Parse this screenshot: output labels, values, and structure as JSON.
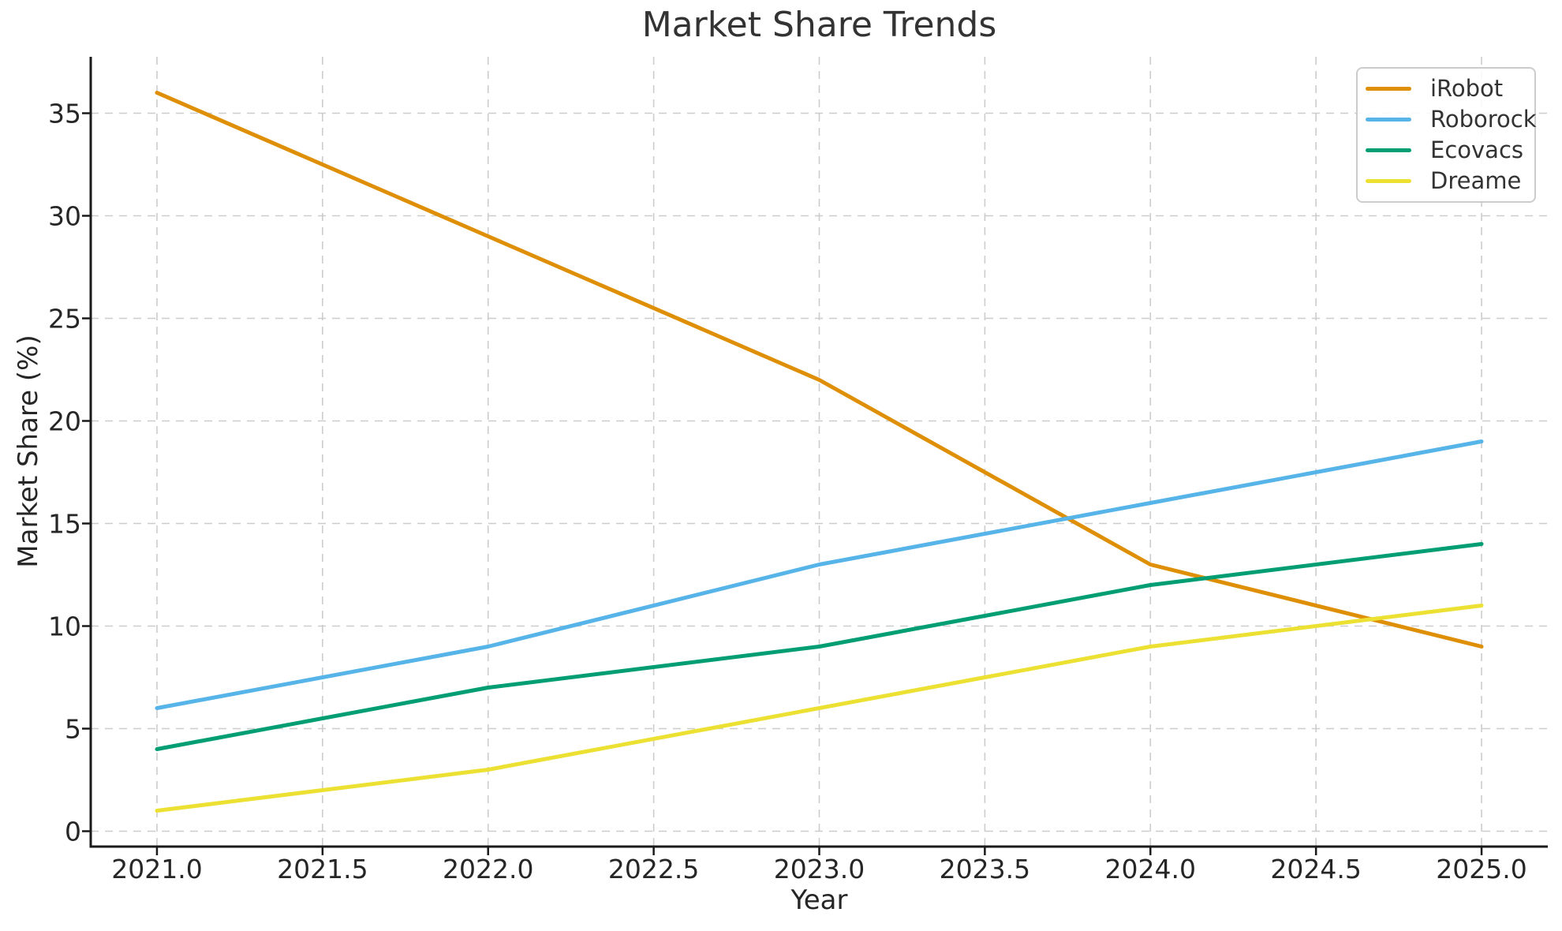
{
  "figure": {
    "kind": "matplotlib-line-chart",
    "background": "#ffffff"
  },
  "chart_data": {
    "type": "line",
    "title": "Market Share Trends",
    "xlabel": "Year",
    "ylabel": "Market Share (%)",
    "x": [
      2021,
      2022,
      2023,
      2024,
      2025
    ],
    "series": [
      {
        "name": "iRobot",
        "color": "#DE8F05",
        "values": [
          36,
          29,
          22,
          13,
          9
        ]
      },
      {
        "name": "Roborock",
        "color": "#56B4E9",
        "values": [
          6,
          9,
          13,
          16,
          19
        ]
      },
      {
        "name": "Ecovacs",
        "color": "#029E73",
        "values": [
          4,
          7,
          9,
          12,
          14
        ]
      },
      {
        "name": "Dreame",
        "color": "#ECE133",
        "values": [
          1,
          3,
          6,
          9,
          11
        ]
      }
    ],
    "xticks": {
      "values": [
        2021.0,
        2021.5,
        2022.0,
        2022.5,
        2023.0,
        2023.5,
        2024.0,
        2024.5,
        2025.0
      ],
      "labels": [
        "2021.0",
        "2021.5",
        "2022.0",
        "2022.5",
        "2023.0",
        "2023.5",
        "2024.0",
        "2024.5",
        "2025.0"
      ]
    },
    "yticks": {
      "values": [
        0,
        5,
        10,
        15,
        20,
        25,
        30,
        35
      ],
      "labels": [
        "0",
        "5",
        "10",
        "15",
        "20",
        "25",
        "30",
        "35"
      ]
    },
    "xlim": [
      2020.8,
      2025.2
    ],
    "ylim": [
      -0.75,
      37.75
    ],
    "grid": true,
    "grid_style": "dashed",
    "legend": {
      "position": "upper right",
      "labels": [
        "iRobot",
        "Roborock",
        "Ecovacs",
        "Dreame"
      ]
    }
  },
  "style": {
    "grid_color": "#CCCCCC",
    "spine_color": "#1A1A1A",
    "tick_color": "#1A1A1A",
    "text_color": "#262626",
    "title_color": "#333333",
    "legend_border_color": "#CCCCCC"
  }
}
